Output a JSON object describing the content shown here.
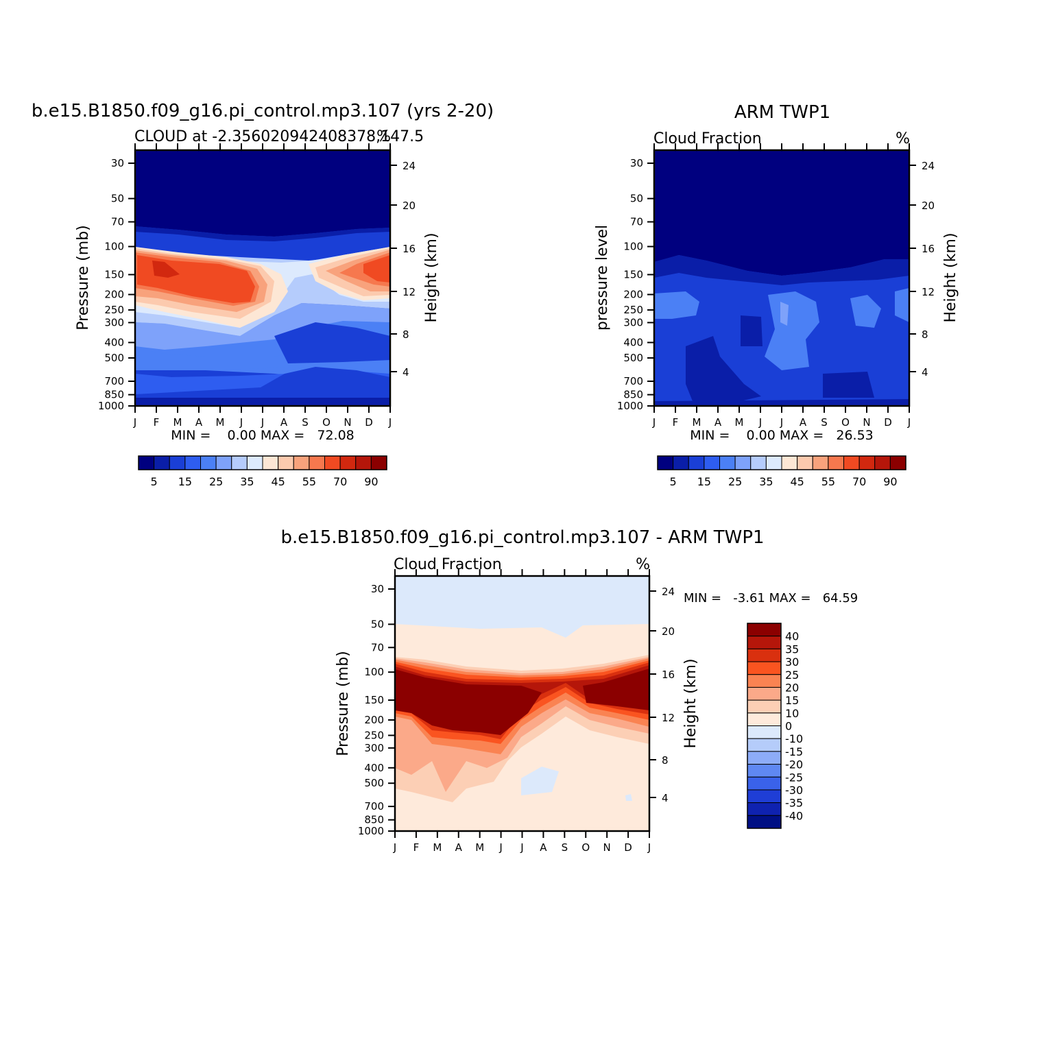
{
  "colors": {
    "seq": [
      "#00007f",
      "#0a1ea8",
      "#1a3fd6",
      "#2e5df0",
      "#4b80f5",
      "#7ea2fa",
      "#b5ccfc",
      "#ddeafd",
      "#fde7d5",
      "#fccaae",
      "#f8a27c",
      "#f6784e",
      "#f04a22",
      "#d2280f",
      "#b5160a",
      "#8b0000"
    ],
    "diff": [
      "#8b0000",
      "#b5160a",
      "#d9300f",
      "#fa5420",
      "#fa8352",
      "#fba989",
      "#fccfb5",
      "#feeadb",
      "#dce9fb",
      "#b5ccfa",
      "#8dacf8",
      "#5f88f2",
      "#3a62ea",
      "#1f3ed6",
      "#0f22b0",
      "#000f84"
    ]
  },
  "panels": [
    {
      "id": "model",
      "title": "b.e15.B1850.f09_g16.pi_control.mp3.107 (yrs 2-20)",
      "left_label": "CLOUD at -2.356020942408378,147.5",
      "right_label": "%",
      "ylabel": "Pressure (mb)",
      "y2label": "Height (km)",
      "minmax": "MIN =    0.00 MAX =   72.08"
    },
    {
      "id": "obs",
      "title": "ARM TWP1",
      "left_label": "Cloud Fraction",
      "right_label": "%",
      "ylabel": "pressure level",
      "y2label": "Height (km)",
      "minmax": "MIN =    0.00 MAX =   26.53"
    },
    {
      "id": "diff",
      "title": "b.e15.B1850.f09_g16.pi_control.mp3.107 - ARM TWP1",
      "left_label": "Cloud Fraction",
      "right_label": "%",
      "ylabel": "Pressure (mb)",
      "y2label": "Height (km)",
      "minmax": "MIN =   -3.61 MAX =   64.59"
    }
  ],
  "chart_data": [
    {
      "type": "heatmap",
      "title": "b.e15.B1850.f09_g16.pi_control.mp3.107 (yrs 2-20)",
      "subtitle": "CLOUD at -2.356020942408378,147.5",
      "units": "%",
      "xlabel": "",
      "ylabel": "Pressure (mb)",
      "y2label": "Height (km)",
      "x": [
        "J",
        "F",
        "M",
        "A",
        "M",
        "J",
        "J",
        "A",
        "S",
        "O",
        "N",
        "D",
        "J"
      ],
      "y_pressure_ticks": [
        30,
        50,
        70,
        100,
        150,
        200,
        250,
        300,
        400,
        500,
        700,
        850,
        1000
      ],
      "y2_height_ticks": [
        24,
        20,
        16,
        12,
        8,
        4
      ],
      "ylim": [
        30,
        1000
      ],
      "colorbar_levels": [
        5,
        10,
        15,
        20,
        25,
        30,
        35,
        40,
        45,
        50,
        55,
        60,
        70,
        80,
        90
      ],
      "colorbar_labels": [
        "5",
        "15",
        "25",
        "35",
        "45",
        "55",
        "70",
        "90"
      ],
      "min": 0.0,
      "max": 72.08,
      "grid": false
    },
    {
      "type": "heatmap",
      "title": "ARM TWP1",
      "subtitle": "Cloud Fraction",
      "units": "%",
      "xlabel": "",
      "ylabel": "pressure level",
      "y2label": "Height (km)",
      "x": [
        "J",
        "F",
        "M",
        "A",
        "M",
        "J",
        "J",
        "A",
        "S",
        "O",
        "N",
        "D",
        "J"
      ],
      "y_pressure_ticks": [
        30,
        50,
        70,
        100,
        150,
        200,
        250,
        300,
        400,
        500,
        700,
        850,
        1000
      ],
      "y2_height_ticks": [
        24,
        20,
        16,
        12,
        8,
        4
      ],
      "ylim": [
        30,
        1000
      ],
      "colorbar_levels": [
        5,
        10,
        15,
        20,
        25,
        30,
        35,
        40,
        45,
        50,
        55,
        60,
        70,
        80,
        90
      ],
      "colorbar_labels": [
        "5",
        "15",
        "25",
        "35",
        "45",
        "55",
        "70",
        "90"
      ],
      "min": 0.0,
      "max": 26.53,
      "grid": false
    },
    {
      "type": "heatmap",
      "title": "b.e15.B1850.f09_g16.pi_control.mp3.107 - ARM TWP1",
      "subtitle": "Cloud Fraction",
      "units": "%",
      "xlabel": "",
      "ylabel": "Pressure (mb)",
      "y2label": "Height (km)",
      "x": [
        "J",
        "F",
        "M",
        "A",
        "M",
        "J",
        "J",
        "A",
        "S",
        "O",
        "N",
        "D",
        "J"
      ],
      "y_pressure_ticks": [
        30,
        50,
        70,
        100,
        150,
        200,
        250,
        300,
        400,
        500,
        700,
        850,
        1000
      ],
      "y2_height_ticks": [
        24,
        20,
        16,
        12,
        8,
        4
      ],
      "ylim": [
        30,
        1000
      ],
      "colorbar_labels": [
        "40",
        "35",
        "30",
        "25",
        "20",
        "15",
        "10",
        "0",
        "-10",
        "-15",
        "-20",
        "-25",
        "-30",
        "-35",
        "-40"
      ],
      "min": -3.61,
      "max": 64.59,
      "grid": false
    }
  ]
}
